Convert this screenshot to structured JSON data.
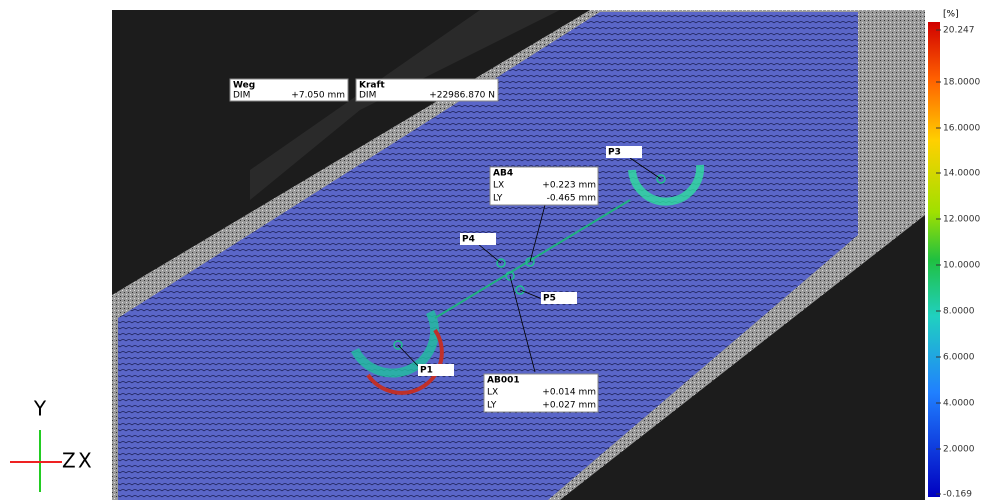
{
  "measurements": [
    {
      "title": "Weg",
      "rows": [
        [
          "DIM",
          "+7.050 mm"
        ]
      ]
    },
    {
      "title": "Kraft",
      "rows": [
        [
          "DIM",
          "+22986.870 N"
        ]
      ]
    }
  ],
  "distances": [
    {
      "title": "AB4",
      "rows": [
        [
          "LX",
          "+0.223 mm"
        ],
        [
          "LY",
          "-0.465 mm"
        ]
      ]
    },
    {
      "title": "AB001",
      "rows": [
        [
          "LX",
          "+0.014 mm"
        ],
        [
          "LY",
          "+0.027 mm"
        ]
      ]
    }
  ],
  "points": [
    "P1",
    "P3",
    "P4",
    "P5"
  ],
  "colorbar": {
    "unit": "[%]",
    "ticks": [
      "20.247",
      "18.0000",
      "16.0000",
      "14.0000",
      "12.0000",
      "10.0000",
      "8.0000",
      "6.0000",
      "4.0000",
      "2.0000",
      "-0.169"
    ]
  },
  "axes": [
    "Y",
    "Z",
    "X"
  ]
}
